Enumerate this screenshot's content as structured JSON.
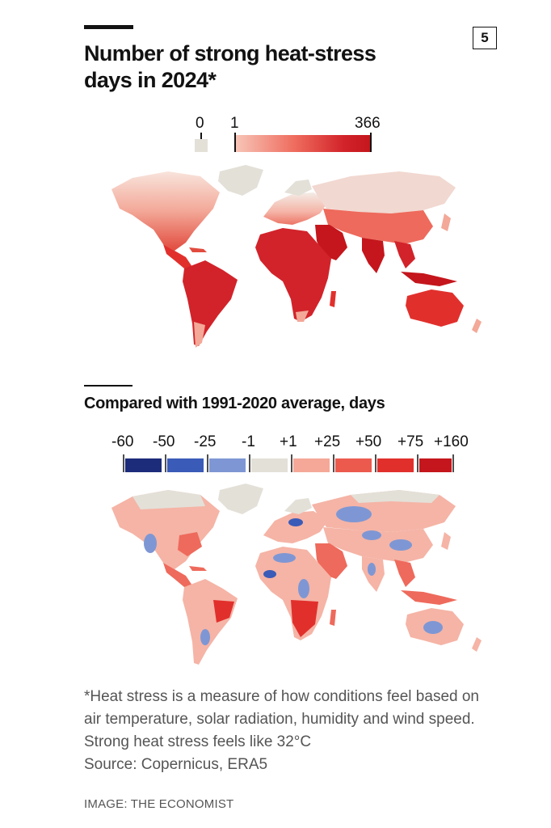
{
  "badge": "5",
  "title_line1": "Number of strong heat-stress",
  "title_line2": "days in 2024*",
  "legend1": {
    "zero_label": "0",
    "min_label": "1",
    "max_label": "366",
    "zero_color": "#e3e0d8",
    "gradient_start": "#f7c6b8",
    "gradient_end": "#c4161c"
  },
  "subtitle": "Compared with 1991-2020 average, days",
  "legend2": {
    "ticks": [
      "-60",
      "-50",
      "-25",
      "-1",
      "+1",
      "+25",
      "+50",
      "+75",
      "+160"
    ],
    "colors": [
      "#1c2b7a",
      "#3a5bb8",
      "#7e97d4",
      "#e3e0d8",
      "#f5a898",
      "#ec5a4e",
      "#e1302c",
      "#c4161c"
    ]
  },
  "colors": {
    "land_neutral": "#e3e0d8",
    "heat_light": "#f5b4a6",
    "heat_mid": "#ee6a5c",
    "heat_high": "#e1302c",
    "heat_max": "#c4161c",
    "cool_light": "#7e97d4",
    "cool_mid": "#3a5bb8",
    "text_dark": "#121212",
    "text_grey": "#555555"
  },
  "note": {
    "line1": "*Heat stress is a measure of how conditions feel based on",
    "line2": "air temperature, solar radiation, humidity and wind speed.",
    "line3": "Strong heat stress feels like 32°C",
    "line4": "Source: Copernicus, ERA5"
  },
  "credit": "IMAGE: THE ECONOMIST"
}
